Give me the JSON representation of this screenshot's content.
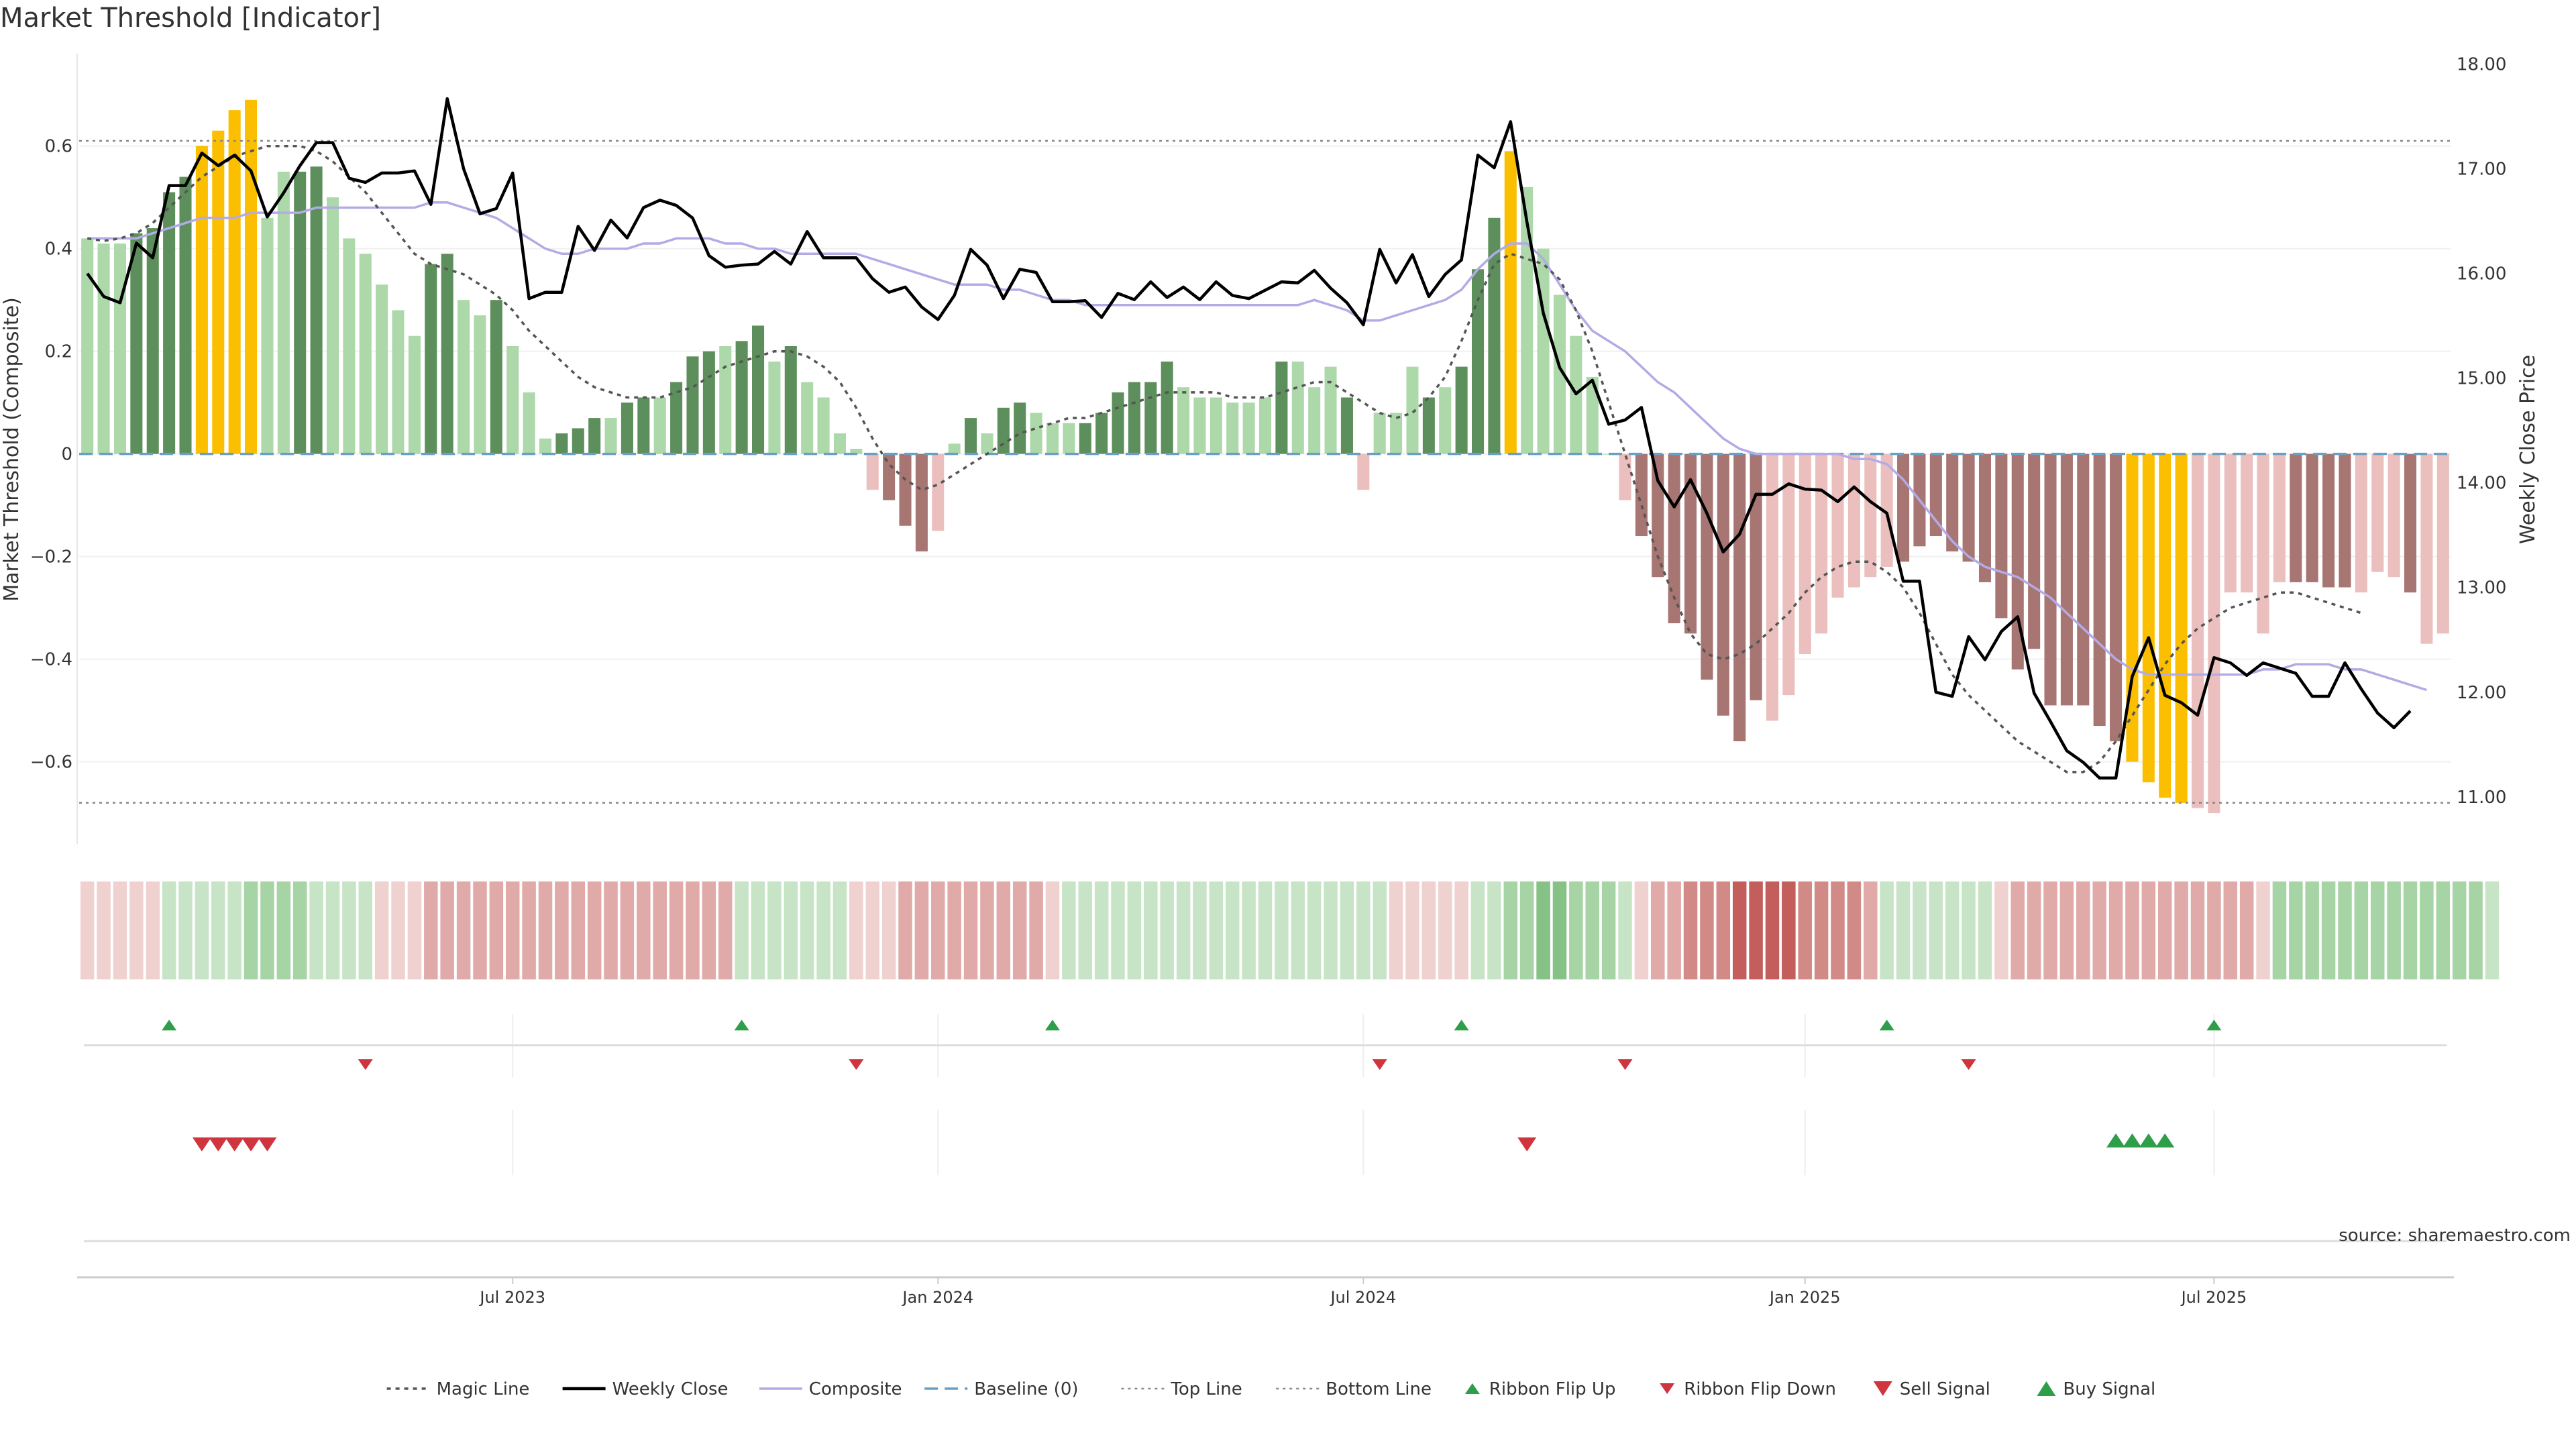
{
  "title": "Market Threshold [Indicator]",
  "source": "source: sharemaestro.com",
  "colors": {
    "green_light": "#acd8aa",
    "green_dark": "#5d8f5c",
    "red_light": "#ebbfbd",
    "red_dark": "#a77572",
    "gold": "#fbbf00",
    "weekly_close": "#000000",
    "composite": "#b2abe5",
    "magic": "#555555",
    "baseline": "#6a9fc4",
    "threshold": "#888888",
    "ribbon_up": "#2e9e49",
    "ribbon_down": "#d0343d"
  },
  "chart_data": {
    "type": "bar",
    "start_date": "2023-01-02",
    "weeks": 144,
    "x_ticks": [
      {
        "date": "2023-07-03",
        "label": "Jul 2023"
      },
      {
        "date": "2024-01-01",
        "label": "Jan 2024"
      },
      {
        "date": "2024-07-01",
        "label": "Jul 2024"
      },
      {
        "date": "2025-01-06",
        "label": "Jan 2025"
      },
      {
        "date": "2025-06-30",
        "label": "Jul 2025"
      }
    ],
    "ylabel": "Market Threshold (Composite)",
    "ylabel_right": "Weekly Close Price",
    "ylim": [
      -0.76,
      0.78
    ],
    "ylim_right": [
      10.55,
      18.1
    ],
    "y_ticks": [
      0.6,
      0.4,
      0.2,
      0,
      -0.2,
      -0.4,
      -0.6
    ],
    "y_tick_labels": [
      "0.6",
      "0.4",
      "0.2",
      "0",
      "−0.2",
      "−0.4",
      "−0.6"
    ],
    "y_ticks_right": [
      18,
      17,
      16,
      15,
      14,
      13,
      12,
      11
    ],
    "y_tick_labels_right": [
      "18.00",
      "17.00",
      "16.00",
      "15.00",
      "14.00",
      "13.00",
      "12.00",
      "11.00"
    ],
    "top_line": 0.61,
    "bottom_line": -0.68,
    "composite": [
      0.42,
      0.41,
      0.41,
      0.43,
      0.44,
      0.51,
      0.54,
      0.6,
      0.63,
      0.67,
      0.69,
      0.46,
      0.55,
      0.55,
      0.56,
      0.5,
      0.42,
      0.39,
      0.33,
      0.28,
      0.23,
      0.37,
      0.39,
      0.3,
      0.27,
      0.3,
      0.21,
      0.12,
      0.03,
      0.04,
      0.05,
      0.07,
      0.07,
      0.1,
      0.11,
      0.11,
      0.14,
      0.19,
      0.2,
      0.21,
      0.22,
      0.25,
      0.18,
      0.21,
      0.14,
      0.11,
      0.04,
      0.01,
      -0.07,
      -0.09,
      -0.14,
      -0.19,
      -0.15,
      0.02,
      0.07,
      0.04,
      0.09,
      0.1,
      0.08,
      0.06,
      0.06,
      0.06,
      0.08,
      0.12,
      0.14,
      0.14,
      0.18,
      0.13,
      0.11,
      0.11,
      0.1,
      0.1,
      0.11,
      0.18,
      0.18,
      0.13,
      0.17,
      0.11,
      -0.07,
      0.08,
      0.08,
      0.17,
      0.11,
      0.13,
      0.17,
      0.36,
      0.46,
      0.59,
      0.52,
      0.4,
      0.31,
      0.23,
      0.15,
      0.0,
      -0.09,
      -0.16,
      -0.24,
      -0.33,
      -0.35,
      -0.44,
      -0.51,
      -0.56,
      -0.48,
      -0.52,
      -0.47,
      -0.39,
      -0.35,
      -0.28,
      -0.26,
      -0.24,
      -0.22,
      -0.21,
      -0.18,
      -0.16,
      -0.19,
      -0.21,
      -0.25,
      -0.32,
      -0.42,
      -0.38,
      -0.49,
      -0.49,
      -0.49,
      -0.53,
      -0.56,
      -0.6,
      -0.64,
      -0.67,
      -0.68,
      -0.69,
      -0.7,
      -0.27,
      -0.27,
      -0.35,
      -0.25,
      -0.25,
      -0.25,
      -0.26,
      -0.26,
      -0.27,
      -0.23,
      -0.24,
      -0.27,
      -0.37,
      -0.35
    ],
    "bar_shade": [
      0,
      0,
      0,
      1,
      1,
      1,
      1,
      2,
      2,
      2,
      2,
      0,
      0,
      1,
      1,
      0,
      0,
      0,
      0,
      0,
      0,
      1,
      1,
      0,
      0,
      1,
      0,
      0,
      0,
      1,
      1,
      1,
      0,
      1,
      1,
      0,
      1,
      1,
      1,
      0,
      1,
      1,
      0,
      1,
      0,
      0,
      0,
      0,
      0,
      1,
      1,
      1,
      0,
      0,
      1,
      0,
      1,
      1,
      0,
      0,
      0,
      1,
      1,
      1,
      1,
      1,
      1,
      0,
      0,
      0,
      0,
      0,
      0,
      1,
      0,
      0,
      0,
      1,
      0,
      0,
      0,
      0,
      1,
      0,
      1,
      1,
      1,
      2,
      0,
      0,
      0,
      0,
      0,
      0,
      0,
      1,
      1,
      1,
      1,
      1,
      1,
      1,
      1,
      0,
      0,
      0,
      0,
      0,
      0,
      0,
      0,
      1,
      1,
      1,
      1,
      1,
      1,
      1,
      1,
      1,
      1,
      1,
      1,
      1,
      1,
      2,
      2,
      2,
      2,
      0,
      0,
      0,
      0,
      0,
      0,
      1,
      1,
      1,
      1,
      0,
      0,
      0,
      1,
      0
    ],
    "weekly_close": [
      16.0,
      15.78,
      15.72,
      16.29,
      16.15,
      16.84,
      16.84,
      17.15,
      17.03,
      17.13,
      16.98,
      16.54,
      16.77,
      17.03,
      17.25,
      17.25,
      16.91,
      16.87,
      16.96,
      16.96,
      16.98,
      16.66,
      17.67,
      17.0,
      16.57,
      16.62,
      16.96,
      15.76,
      15.82,
      15.82,
      16.45,
      16.22,
      16.51,
      16.34,
      16.63,
      16.7,
      16.65,
      16.53,
      16.17,
      16.06,
      16.08,
      16.09,
      16.21,
      16.09,
      16.4,
      16.15,
      16.15,
      16.15,
      15.95,
      15.82,
      15.87,
      15.68,
      15.56,
      15.79,
      16.23,
      16.08,
      15.76,
      16.04,
      16.01,
      15.73,
      15.73,
      15.74,
      15.58,
      15.81,
      15.75,
      15.92,
      15.77,
      15.87,
      15.75,
      15.92,
      15.79,
      15.76,
      15.84,
      15.92,
      15.91,
      16.03,
      15.86,
      15.72,
      15.51,
      16.23,
      15.91,
      16.18,
      15.78,
      15.99,
      16.13,
      17.13,
      17.01,
      17.45,
      16.49,
      15.62,
      15.1,
      14.85,
      14.98,
      14.56,
      14.6,
      14.72,
      14.02,
      13.77,
      14.03,
      13.71,
      13.34,
      13.51,
      13.89,
      13.89,
      13.99,
      13.94,
      13.93,
      13.82,
      13.96,
      13.82,
      13.71,
      13.06,
      13.06,
      12.0,
      11.96,
      12.53,
      12.31,
      12.58,
      12.72,
      11.99,
      11.72,
      11.44,
      11.33,
      11.18,
      11.18,
      12.15,
      12.52,
      11.97,
      11.9,
      11.78,
      12.33,
      12.28,
      12.16,
      12.28,
      12.23,
      12.18,
      11.96,
      11.96,
      12.28,
      12.03,
      11.8,
      11.66,
      11.82
    ],
    "magic_line": [
      0.42,
      0.415,
      0.42,
      0.43,
      0.45,
      0.48,
      0.51,
      0.54,
      0.56,
      0.58,
      0.59,
      0.6,
      0.6,
      0.6,
      0.59,
      0.57,
      0.54,
      0.51,
      0.47,
      0.43,
      0.39,
      0.37,
      0.36,
      0.35,
      0.33,
      0.31,
      0.28,
      0.24,
      0.21,
      0.18,
      0.15,
      0.13,
      0.12,
      0.11,
      0.11,
      0.11,
      0.12,
      0.13,
      0.15,
      0.17,
      0.18,
      0.19,
      0.2,
      0.2,
      0.19,
      0.17,
      0.14,
      0.09,
      0.03,
      -0.02,
      -0.05,
      -0.07,
      -0.06,
      -0.04,
      -0.02,
      0.0,
      0.02,
      0.04,
      0.05,
      0.06,
      0.07,
      0.07,
      0.08,
      0.09,
      0.1,
      0.11,
      0.12,
      0.12,
      0.12,
      0.12,
      0.11,
      0.11,
      0.11,
      0.12,
      0.13,
      0.14,
      0.14,
      0.12,
      0.1,
      0.08,
      0.07,
      0.08,
      0.11,
      0.15,
      0.22,
      0.3,
      0.37,
      0.39,
      0.38,
      0.37,
      0.34,
      0.28,
      0.2,
      0.1,
      0.0,
      -0.1,
      -0.2,
      -0.28,
      -0.35,
      -0.39,
      -0.4,
      -0.39,
      -0.37,
      -0.34,
      -0.31,
      -0.27,
      -0.24,
      -0.22,
      -0.21,
      -0.21,
      -0.23,
      -0.26,
      -0.31,
      -0.37,
      -0.43,
      -0.47,
      -0.5,
      -0.53,
      -0.56,
      -0.58,
      -0.6,
      -0.62,
      -0.62,
      -0.6,
      -0.56,
      -0.51,
      -0.46,
      -0.41,
      -0.37,
      -0.34,
      -0.32,
      -0.3,
      -0.29,
      -0.28,
      -0.27,
      -0.27,
      -0.28,
      -0.29,
      -0.3,
      -0.31
    ],
    "composite_line": [
      0.42,
      0.42,
      0.42,
      0.42,
      0.43,
      0.44,
      0.45,
      0.46,
      0.46,
      0.46,
      0.47,
      0.47,
      0.47,
      0.47,
      0.48,
      0.48,
      0.48,
      0.48,
      0.48,
      0.48,
      0.48,
      0.49,
      0.49,
      0.48,
      0.47,
      0.46,
      0.44,
      0.42,
      0.4,
      0.39,
      0.39,
      0.4,
      0.4,
      0.4,
      0.41,
      0.41,
      0.42,
      0.42,
      0.42,
      0.41,
      0.41,
      0.4,
      0.4,
      0.39,
      0.39,
      0.39,
      0.39,
      0.39,
      0.38,
      0.37,
      0.36,
      0.35,
      0.34,
      0.33,
      0.33,
      0.33,
      0.32,
      0.32,
      0.31,
      0.3,
      0.3,
      0.29,
      0.29,
      0.29,
      0.29,
      0.29,
      0.29,
      0.29,
      0.29,
      0.29,
      0.29,
      0.29,
      0.29,
      0.29,
      0.29,
      0.3,
      0.29,
      0.28,
      0.26,
      0.26,
      0.27,
      0.28,
      0.29,
      0.3,
      0.32,
      0.36,
      0.39,
      0.41,
      0.41,
      0.38,
      0.33,
      0.28,
      0.24,
      0.22,
      0.2,
      0.17,
      0.14,
      0.12,
      0.09,
      0.06,
      0.03,
      0.01,
      0.0,
      0.0,
      0.0,
      0.0,
      0.0,
      0.0,
      -0.01,
      -0.01,
      -0.02,
      -0.05,
      -0.09,
      -0.13,
      -0.17,
      -0.2,
      -0.22,
      -0.23,
      -0.24,
      -0.26,
      -0.28,
      -0.31,
      -0.34,
      -0.37,
      -0.4,
      -0.42,
      -0.43,
      -0.43,
      -0.43,
      -0.43,
      -0.43,
      -0.43,
      -0.43,
      -0.42,
      -0.42,
      -0.41,
      -0.41,
      -0.41,
      -0.42,
      -0.42,
      -0.43,
      -0.44,
      -0.45,
      -0.46
    ],
    "ribbon": [
      -1,
      -1,
      -1,
      -1,
      -1,
      1,
      1,
      1,
      1,
      1,
      2,
      2,
      2,
      2,
      1,
      1,
      1,
      1,
      -1,
      -1,
      -1,
      -2,
      -2,
      -2,
      -2,
      -2,
      -2,
      -2,
      -2,
      -2,
      -2,
      -2,
      -2,
      -2,
      -2,
      -2,
      -2,
      -2,
      -2,
      -2,
      1,
      1,
      1,
      1,
      1,
      1,
      1,
      -1,
      -1,
      -1,
      -2,
      -2,
      -2,
      -2,
      -2,
      -2,
      -2,
      -2,
      -2,
      -1,
      1,
      1,
      1,
      1,
      1,
      1,
      1,
      1,
      1,
      1,
      1,
      1,
      1,
      1,
      1,
      1,
      1,
      1,
      1,
      1,
      -1,
      -1,
      -1,
      -1,
      -1,
      1,
      1,
      2,
      2,
      3,
      3,
      2,
      2,
      2,
      1,
      -1,
      -2,
      -2,
      -3,
      -3,
      -3,
      -4,
      -4,
      -4,
      -4,
      -3,
      -3,
      -3,
      -3,
      -2,
      1,
      1,
      1,
      1,
      1,
      1,
      1,
      -1,
      -2,
      -2,
      -2,
      -2,
      -2,
      -2,
      -2,
      -2,
      -2,
      -2,
      -2,
      -2,
      -2,
      -2,
      -2,
      -1,
      2,
      2,
      2,
      2,
      2,
      2,
      2,
      2,
      2,
      2,
      2,
      2,
      2,
      1
    ],
    "ribbon_flip_up": [
      5,
      40,
      59,
      84,
      110,
      130
    ],
    "ribbon_flip_down": [
      17,
      47,
      79,
      94,
      115
    ],
    "sell_signal": [
      7,
      8,
      9,
      10,
      11,
      88
    ],
    "buy_signal": [
      124,
      125,
      126,
      127
    ],
    "legend": [
      {
        "label": "Magic Line",
        "kind": "dotted"
      },
      {
        "label": "Weekly Close",
        "kind": "solid"
      },
      {
        "label": "Composite",
        "kind": "composite"
      },
      {
        "label": "Baseline (0)",
        "kind": "dashed"
      },
      {
        "label": "Top Line",
        "kind": "thin-dotted"
      },
      {
        "label": "Bottom Line",
        "kind": "thin-dotted"
      },
      {
        "label": "Ribbon Flip Up",
        "kind": "tri-up-small"
      },
      {
        "label": "Ribbon Flip Down",
        "kind": "tri-down-small"
      },
      {
        "label": "Sell Signal",
        "kind": "tri-down"
      },
      {
        "label": "Buy Signal",
        "kind": "tri-up"
      }
    ],
    "legend_position": "bottom-center"
  }
}
